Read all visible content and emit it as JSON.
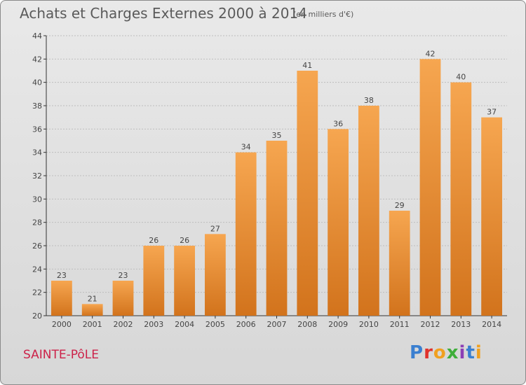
{
  "header": {
    "title": "Achats et Charges Externes 2000 à 2014",
    "subtitle": "(en milliers d'€)"
  },
  "footer": {
    "commune": "SAINTE-PôLE",
    "logo_text": "Proxiti"
  },
  "colors": {
    "bar_light": "#f6a650",
    "bar_dark": "#d2731c",
    "axis": "#333333",
    "grid": "#bdbdbd",
    "text": "#444444"
  },
  "chart_data": {
    "type": "bar",
    "categories": [
      "2000",
      "2001",
      "2002",
      "2003",
      "2004",
      "2005",
      "2006",
      "2007",
      "2008",
      "2009",
      "2010",
      "2011",
      "2012",
      "2013",
      "2014"
    ],
    "values": [
      23,
      21,
      23,
      26,
      26,
      27,
      34,
      35,
      41,
      36,
      38,
      29,
      42,
      40,
      37
    ],
    "title": "Achats et Charges Externes 2000 à 2014",
    "subtitle": "(en milliers d'€)",
    "xlabel": "",
    "ylabel": "",
    "ylim": [
      20,
      44
    ],
    "yticks": [
      20,
      22,
      24,
      26,
      28,
      30,
      32,
      34,
      36,
      38,
      40,
      42,
      44
    ],
    "grid": true,
    "legend": "none"
  }
}
